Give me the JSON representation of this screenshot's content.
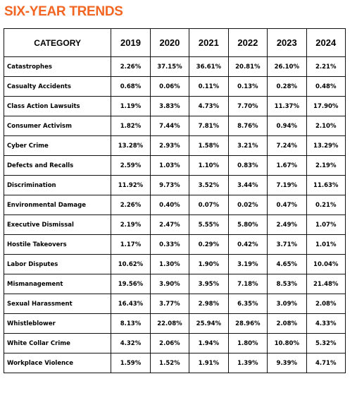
{
  "title": "SIX-YEAR TRENDS",
  "table": {
    "headers": [
      "CATEGORY",
      "2019",
      "2020",
      "2021",
      "2022",
      "2023",
      "2024"
    ],
    "rows": [
      {
        "category": "Catastrophes",
        "values": [
          "2.26%",
          "37.15%",
          "36.61%",
          "20.81%",
          "26.10%",
          "2.21%"
        ]
      },
      {
        "category": "Casualty Accidents",
        "values": [
          "0.68%",
          "0.06%",
          "0.11%",
          "0.13%",
          "0.28%",
          "0.48%"
        ]
      },
      {
        "category": "Class Action Lawsuits",
        "values": [
          "1.19%",
          "3.83%",
          "4.73%",
          "7.70%",
          "11.37%",
          "17.90%"
        ]
      },
      {
        "category": "Consumer Activism",
        "values": [
          "1.82%",
          "7.44%",
          "7.81%",
          "8.76%",
          "0.94%",
          "2.10%"
        ]
      },
      {
        "category": "Cyber Crime",
        "values": [
          "13.28%",
          "2.93%",
          "1.58%",
          "3.21%",
          "7.24%",
          "13.29%"
        ]
      },
      {
        "category": "Defects and Recalls",
        "values": [
          "2.59%",
          "1.03%",
          "1.10%",
          "0.83%",
          "1.67%",
          "2.19%"
        ]
      },
      {
        "category": "Discrimination",
        "values": [
          "11.92%",
          "9.73%",
          "3.52%",
          "3.44%",
          "7.19%",
          "11.63%"
        ]
      },
      {
        "category": "Environmental Damage",
        "values": [
          "2.26%",
          "0.40%",
          "0.07%",
          "0.02%",
          "0.47%",
          "0.21%"
        ]
      },
      {
        "category": "Executive Dismissal",
        "values": [
          "2.19%",
          "2.47%",
          "5.55%",
          "5.80%",
          "2.49%",
          "1.07%"
        ]
      },
      {
        "category": "Hostile Takeovers",
        "values": [
          "1.17%",
          "0.33%",
          "0.29%",
          "0.42%",
          "3.71%",
          "1.01%"
        ]
      },
      {
        "category": "Labor Disputes",
        "values": [
          "10.62%",
          "1.30%",
          "1.90%",
          "3.19%",
          "4.65%",
          "10.04%"
        ]
      },
      {
        "category": "Mismanagement",
        "values": [
          "19.56%",
          "3.90%",
          "3.95%",
          "7.18%",
          "8.53%",
          "21.48%"
        ]
      },
      {
        "category": "Sexual Harassment",
        "values": [
          "16.43%",
          "3.77%",
          "2.98%",
          "6.35%",
          "3.09%",
          "2.08%"
        ]
      },
      {
        "category": "Whistleblower",
        "values": [
          "8.13%",
          "22.08%",
          "25.94%",
          "28.96%",
          "2.08%",
          "4.33%"
        ]
      },
      {
        "category": "White Collar Crime",
        "values": [
          "4.32%",
          "2.06%",
          "1.94%",
          "1.80%",
          "10.80%",
          "5.32%"
        ]
      },
      {
        "category": "Workplace Violence",
        "values": [
          "1.59%",
          "1.52%",
          "1.91%",
          "1.39%",
          "9.39%",
          "4.71%"
        ]
      }
    ]
  }
}
